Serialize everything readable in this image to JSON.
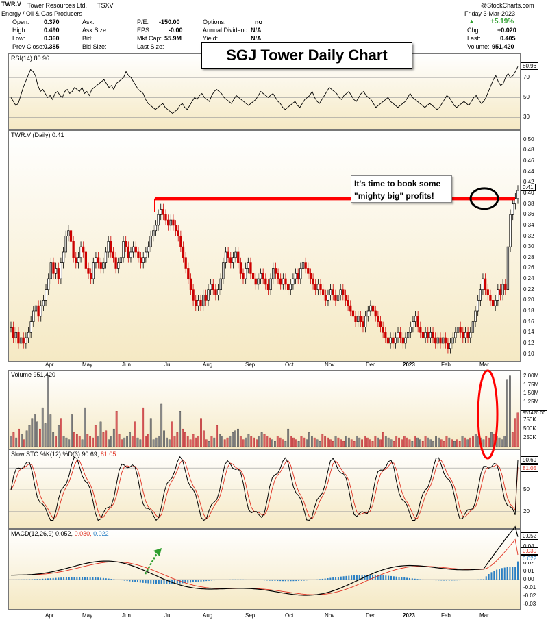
{
  "header": {
    "ticker": "TWR.V",
    "company": "Tower Resources Ltd.",
    "exchange": "TSXV",
    "sector": "Energy / Oil & Gas Producers",
    "watermark": "@StockCharts.com",
    "date": "Friday  3-Mar-2023",
    "change_pct": "+5.19%",
    "fields": [
      {
        "label": "Open:",
        "value": "0.370"
      },
      {
        "label": "High:",
        "value": "0.490"
      },
      {
        "label": "Low:",
        "value": "0.360"
      },
      {
        "label": "Prev Close:",
        "value": "0.385"
      },
      {
        "label": "Ask:",
        "value": ""
      },
      {
        "label": "Ask Size:",
        "value": ""
      },
      {
        "label": "Bid:",
        "value": ""
      },
      {
        "label": "Bid Size:",
        "value": ""
      },
      {
        "label": "P/E:",
        "value": "-150.00"
      },
      {
        "label": "EPS:",
        "value": "-0.00"
      },
      {
        "label": "Mkt Cap:",
        "value": "55.9M"
      },
      {
        "label": "Last Size:",
        "value": ""
      },
      {
        "label": "Options:",
        "value": "no"
      },
      {
        "label": "Annual Dividend:",
        "value": "N/A"
      },
      {
        "label": "Yield:",
        "value": "N/A"
      },
      {
        "label": "Chg:",
        "value": "+0.020"
      },
      {
        "label": "Last:",
        "value": "0.405"
      },
      {
        "label": "Volume:",
        "value": "951,420"
      }
    ]
  },
  "title": "SGJ Tower Daily Chart",
  "annotation": {
    "line1": "It's time to book some",
    "line2": "\"mighty big\" profits!"
  },
  "chart_data": [
    {
      "type": "line",
      "name": "RSI",
      "label": "RSI(14) 80.96",
      "last": "80.96",
      "yticks": [
        "70",
        "50",
        "30"
      ],
      "ylim": [
        20,
        90
      ],
      "values": [
        50,
        46,
        42,
        44,
        52,
        60,
        66,
        72,
        78,
        76,
        72,
        62,
        56,
        58,
        54,
        50,
        52,
        48,
        54,
        56,
        52,
        50,
        56,
        58,
        54,
        56,
        60,
        58,
        56,
        60,
        54,
        56,
        52,
        58,
        60,
        62,
        64,
        66,
        68,
        64,
        60,
        62,
        58,
        64,
        66,
        68,
        70,
        76,
        72,
        70,
        66,
        62,
        58,
        56,
        54,
        48,
        44,
        42,
        40,
        38,
        40,
        42,
        44,
        40,
        38,
        36,
        34,
        36,
        38,
        42,
        44,
        40,
        38,
        42,
        46,
        50,
        48,
        52,
        54,
        50,
        48,
        46,
        52,
        56,
        58,
        56,
        54,
        50,
        48,
        46,
        44,
        48,
        52,
        50,
        48,
        46,
        44,
        42,
        44,
        46,
        48,
        52,
        56,
        54,
        52,
        50,
        52,
        54,
        50,
        46,
        44,
        40,
        38,
        40,
        42,
        44,
        46,
        42,
        40,
        44,
        48,
        50,
        52,
        56,
        50,
        46,
        44,
        48,
        52,
        56,
        60,
        58,
        56,
        54,
        50,
        48,
        52,
        54,
        56,
        52,
        48,
        46,
        50,
        54,
        56,
        52,
        50,
        48,
        44,
        40,
        42,
        44,
        46,
        48,
        50,
        46,
        44,
        42,
        40,
        42,
        44,
        46,
        50,
        54,
        50,
        48,
        46,
        44,
        42,
        40,
        42,
        44,
        42,
        40,
        38,
        40,
        44,
        48,
        52,
        50,
        46,
        42,
        40,
        42,
        44,
        46,
        44,
        42,
        46,
        50,
        52,
        48,
        44,
        46,
        50,
        56,
        62,
        68,
        72,
        66,
        62,
        64,
        70,
        74,
        70,
        72,
        76,
        80.96
      ]
    },
    {
      "type": "candlestick",
      "name": "TWR.V (Daily)",
      "label": "TWR.V (Daily) 0.41",
      "last": "0.41",
      "yticks": [
        "0.50",
        "0.48",
        "0.46",
        "0.44",
        "0.42",
        "0.40",
        "0.38",
        "0.36",
        "0.34",
        "0.32",
        "0.30",
        "0.28",
        "0.26",
        "0.24",
        "0.22",
        "0.20",
        "0.18",
        "0.16",
        "0.14",
        "0.12",
        "0.10"
      ],
      "ylim": [
        0.093,
        0.51
      ],
      "resistance": 0.39,
      "close": [
        0.15,
        0.13,
        0.14,
        0.12,
        0.13,
        0.12,
        0.13,
        0.14,
        0.16,
        0.18,
        0.19,
        0.17,
        0.19,
        0.2,
        0.22,
        0.24,
        0.27,
        0.25,
        0.26,
        0.24,
        0.27,
        0.29,
        0.32,
        0.33,
        0.31,
        0.28,
        0.27,
        0.28,
        0.3,
        0.29,
        0.26,
        0.25,
        0.24,
        0.27,
        0.28,
        0.27,
        0.26,
        0.27,
        0.29,
        0.31,
        0.29,
        0.28,
        0.26,
        0.27,
        0.28,
        0.31,
        0.3,
        0.28,
        0.29,
        0.3,
        0.29,
        0.28,
        0.27,
        0.28,
        0.29,
        0.3,
        0.32,
        0.33,
        0.34,
        0.36,
        0.37,
        0.36,
        0.35,
        0.34,
        0.35,
        0.34,
        0.33,
        0.32,
        0.3,
        0.28,
        0.26,
        0.24,
        0.22,
        0.2,
        0.19,
        0.2,
        0.19,
        0.21,
        0.2,
        0.22,
        0.23,
        0.22,
        0.21,
        0.22,
        0.24,
        0.27,
        0.29,
        0.28,
        0.27,
        0.28,
        0.29,
        0.27,
        0.25,
        0.24,
        0.26,
        0.27,
        0.25,
        0.24,
        0.23,
        0.24,
        0.25,
        0.24,
        0.23,
        0.22,
        0.24,
        0.26,
        0.25,
        0.24,
        0.23,
        0.24,
        0.23,
        0.22,
        0.23,
        0.24,
        0.25,
        0.24,
        0.26,
        0.27,
        0.26,
        0.25,
        0.24,
        0.23,
        0.22,
        0.23,
        0.22,
        0.21,
        0.2,
        0.21,
        0.22,
        0.21,
        0.2,
        0.21,
        0.22,
        0.21,
        0.2,
        0.19,
        0.18,
        0.17,
        0.16,
        0.17,
        0.16,
        0.15,
        0.17,
        0.18,
        0.19,
        0.18,
        0.17,
        0.16,
        0.15,
        0.14,
        0.13,
        0.12,
        0.13,
        0.12,
        0.13,
        0.14,
        0.13,
        0.12,
        0.13,
        0.14,
        0.15,
        0.16,
        0.17,
        0.15,
        0.14,
        0.13,
        0.14,
        0.13,
        0.14,
        0.13,
        0.12,
        0.13,
        0.12,
        0.13,
        0.12,
        0.11,
        0.12,
        0.13,
        0.14,
        0.15,
        0.14,
        0.13,
        0.14,
        0.13,
        0.14,
        0.16,
        0.18,
        0.2,
        0.22,
        0.24,
        0.22,
        0.21,
        0.2,
        0.19,
        0.2,
        0.22,
        0.21,
        0.23,
        0.22,
        0.3,
        0.36,
        0.38,
        0.39,
        0.405
      ]
    },
    {
      "type": "bar",
      "name": "Volume",
      "label": "Volume 951,420",
      "last": "951420.00",
      "yticks": [
        "2.00M",
        "1.75M",
        "1.50M",
        "1.25M",
        "750K",
        "500K",
        "250K"
      ],
      "ylim": [
        0,
        2050000
      ],
      "values": [
        300000,
        400000,
        250000,
        500000,
        350000,
        200000,
        450000,
        600000,
        800000,
        900000,
        700000,
        500000,
        1100000,
        650000,
        2000000,
        900000,
        400000,
        300000,
        600000,
        800000,
        300000,
        250000,
        200000,
        900000,
        400000,
        350000,
        300000,
        200000,
        1100000,
        350000,
        300000,
        250000,
        600000,
        300000,
        700000,
        400000,
        450000,
        200000,
        300000,
        500000,
        1000000,
        350000,
        200000,
        250000,
        300000,
        400000,
        300000,
        700000,
        250000,
        200000,
        1100000,
        300000,
        350000,
        800000,
        200000,
        250000,
        300000,
        1200000,
        450000,
        250000,
        200000,
        700000,
        300000,
        400000,
        1000000,
        500000,
        400000,
        300000,
        200000,
        350000,
        250000,
        300000,
        800000,
        450000,
        200000,
        150000,
        300000,
        250000,
        600000,
        350000,
        300000,
        200000,
        250000,
        300000,
        400000,
        450000,
        500000,
        300000,
        200000,
        250000,
        350000,
        300000,
        250000,
        200000,
        300000,
        400000,
        350000,
        300000,
        250000,
        200000,
        150000,
        300000,
        250000,
        200000,
        150000,
        500000,
        300000,
        250000,
        200000,
        150000,
        300000,
        250000,
        200000,
        400000,
        300000,
        250000,
        200000,
        150000,
        350000,
        300000,
        250000,
        200000,
        150000,
        300000,
        250000,
        200000,
        150000,
        300000,
        250000,
        200000,
        150000,
        300000,
        250000,
        200000,
        300000,
        250000,
        200000,
        150000,
        300000,
        250000,
        200000,
        400000,
        300000,
        250000,
        200000,
        150000,
        300000,
        250000,
        200000,
        300000,
        250000,
        200000,
        150000,
        300000,
        250000,
        200000,
        150000,
        300000,
        250000,
        200000,
        150000,
        300000,
        250000,
        200000,
        150000,
        300000,
        250000,
        200000,
        150000,
        200000,
        150000,
        300000,
        250000,
        200000,
        250000,
        300000,
        350000,
        300000,
        250000,
        200000,
        300000,
        250000,
        400000,
        350000,
        300000,
        250000,
        200000,
        300000,
        1900000,
        2000000,
        400000,
        800000,
        951420
      ]
    },
    {
      "type": "line",
      "name": "Slow STO",
      "label": "Slow STO %K(12) %D(3) 90.69, 81.05",
      "label_k": "Slow STO %K(12) %D(3) 90.69,",
      "label_d": "81.05",
      "last_k": "90.69",
      "last_d": "81.05",
      "yticks": [
        "50",
        "20"
      ],
      "ylim": [
        0,
        100
      ]
    },
    {
      "type": "line",
      "name": "MACD",
      "label": "MACD(12,26,9) 0.052, 0.030, 0.022",
      "label_main": "MACD(12,26,9) 0.052,",
      "label_signal": "0.030,",
      "label_hist": "0.022",
      "last_macd": "0.052",
      "last_signal": "0.030",
      "last_hist": "0.022",
      "yticks": [
        "0.04",
        "0.03",
        "0.02",
        "0.01",
        "0.00",
        "-0.01",
        "-0.02",
        "-0.03"
      ],
      "ylim": [
        -0.035,
        0.055
      ]
    }
  ],
  "x_axis": [
    "Apr",
    "May",
    "Jun",
    "Jul",
    "Aug",
    "Sep",
    "Oct",
    "Nov",
    "Dec",
    "2023",
    "Feb",
    "Mar"
  ],
  "colors": {
    "up": "#000000",
    "down": "#cc0000",
    "rsi": "#000000",
    "stoK": "#000000",
    "stoD": "#e03020",
    "macd": "#000000",
    "signal": "#e03020",
    "hist": "#2a7fc4",
    "resistance": "#ff0000",
    "arrow": "#2f9e2f"
  }
}
